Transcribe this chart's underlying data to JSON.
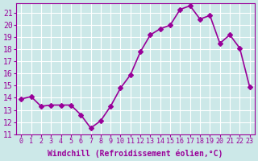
{
  "x": [
    0,
    1,
    2,
    3,
    4,
    5,
    6,
    7,
    8,
    9,
    10,
    11,
    12,
    13,
    14,
    15,
    16,
    17,
    18,
    19,
    20,
    21,
    22,
    23
  ],
  "y": [
    13.9,
    14.1,
    13.3,
    13.4,
    13.4,
    13.4,
    12.6,
    11.5,
    12.1,
    13.3,
    14.8,
    15.9,
    17.8,
    19.2,
    19.7,
    20.0,
    21.3,
    21.6,
    20.5,
    20.8,
    18.5,
    19.2,
    18.1,
    14.9
  ],
  "line_color": "#990099",
  "marker": "D",
  "marker_size": 3,
  "bg_color": "#cce8e8",
  "grid_color": "#ffffff",
  "xlabel": "Windchill (Refroidissement éolien,°C)",
  "xlabel_color": "#990099",
  "tick_color": "#990099",
  "xlim": [
    -0.5,
    23.5
  ],
  "ylim": [
    11,
    21.8
  ],
  "yticks": [
    11,
    12,
    13,
    14,
    15,
    16,
    17,
    18,
    19,
    20,
    21
  ],
  "xtick_labels": [
    "0",
    "1",
    "2",
    "3",
    "4",
    "5",
    "6",
    "7",
    "8",
    "9",
    "10",
    "11",
    "12",
    "13",
    "14",
    "15",
    "16",
    "17",
    "18",
    "19",
    "20",
    "21",
    "22",
    "23"
  ],
  "line_width": 1.2,
  "font_size": 7
}
